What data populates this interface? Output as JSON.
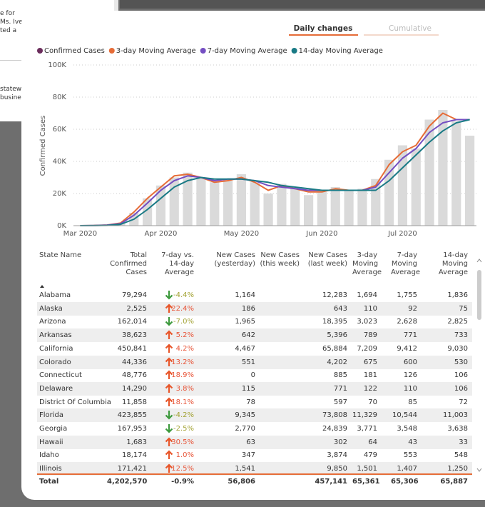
{
  "background_texts": [
    "e for",
    "Ms. Ive",
    "ted a",
    "statew",
    "busine"
  ],
  "tabs": [
    "Daily changes",
    "Cumulative"
  ],
  "chart_data": {
    "type": "line",
    "ylabel": "Confirmed Cases",
    "categories": [
      "Mar 2020",
      null,
      null,
      null,
      null,
      null,
      "Apr 2020",
      null,
      null,
      null,
      null,
      null,
      "May 2020",
      null,
      null,
      null,
      null,
      null,
      "Jun 2020",
      null,
      null,
      null,
      null,
      null,
      "Jul 2020",
      null,
      null,
      null,
      null,
      null
    ],
    "ylim": [
      0,
      100000
    ],
    "yticks": [
      {
        "value": 0,
        "label": "0K"
      },
      {
        "value": 20000,
        "label": "20K"
      },
      {
        "value": 40000,
        "label": "40K"
      },
      {
        "value": 60000,
        "label": "60K"
      },
      {
        "value": 80000,
        "label": "80K"
      },
      {
        "value": 100000,
        "label": "100K"
      }
    ],
    "grid": true,
    "legend": "top-left",
    "bar_color": "#dadada",
    "series": [
      {
        "name": "Confirmed Cases",
        "color": "#6b2d5c",
        "kind": "bar",
        "values": [
          0,
          100,
          400,
          1500,
          8000,
          17000,
          25000,
          30000,
          33000,
          30000,
          27000,
          29000,
          32000,
          27000,
          20000,
          26000,
          24000,
          19000,
          21000,
          24000,
          22000,
          23000,
          29000,
          41000,
          50000,
          48000,
          66000,
          72000,
          65000,
          56000
        ]
      },
      {
        "name": "3-day Moving Average",
        "color": "#e66c37",
        "kind": "line",
        "values": [
          0,
          100,
          400,
          1600,
          8500,
          17000,
          24000,
          31000,
          32000,
          30000,
          27000,
          28000,
          30000,
          27000,
          22000,
          25000,
          23000,
          21000,
          21000,
          23000,
          22000,
          22000,
          25000,
          38000,
          46000,
          50000,
          62000,
          70000,
          66000,
          66000
        ]
      },
      {
        "name": "7-day Moving Average",
        "color": "#744ec2",
        "kind": "line",
        "values": [
          0,
          50,
          300,
          1200,
          6500,
          14000,
          22000,
          28000,
          31000,
          30000,
          28000,
          29000,
          29000,
          28000,
          25000,
          24000,
          23000,
          22000,
          22000,
          22000,
          22000,
          22000,
          24000,
          33000,
          42000,
          48000,
          58000,
          64000,
          66000,
          66000
        ]
      },
      {
        "name": "14-day Moving Average",
        "color": "#197a85",
        "kind": "line",
        "values": [
          0,
          30,
          200,
          800,
          4000,
          10000,
          17000,
          24000,
          28000,
          30000,
          29000,
          29000,
          29000,
          28000,
          27000,
          25000,
          24000,
          23000,
          22000,
          22000,
          22000,
          22000,
          22000,
          28000,
          36000,
          44000,
          52000,
          59000,
          64000,
          66000
        ]
      }
    ]
  },
  "table": {
    "columns": [
      "State Name",
      "Total Confirmed Cases",
      "7-day vs. 14-day Average",
      "New Cases (yesterday)",
      "New Cases (this week)",
      "New Cases (last week)",
      "3-day Moving Average",
      "7-day Moving Average",
      "14-day Moving Average"
    ],
    "rows": [
      [
        "Alabama",
        "79,294",
        "-4.4%",
        "1,164",
        "",
        "12,283",
        "1,694",
        "1,755",
        "1,836"
      ],
      [
        "Alaska",
        "2,525",
        "22.4%",
        "186",
        "",
        "643",
        "110",
        "92",
        "75"
      ],
      [
        "Arizona",
        "162,014",
        "-7.0%",
        "1,965",
        "",
        "18,395",
        "3,023",
        "2,628",
        "2,825"
      ],
      [
        "Arkansas",
        "38,623",
        "5.2%",
        "642",
        "",
        "5,396",
        "789",
        "771",
        "733"
      ],
      [
        "California",
        "450,841",
        "4.2%",
        "4,467",
        "",
        "65,884",
        "7,209",
        "9,412",
        "9,030"
      ],
      [
        "Colorado",
        "44,336",
        "13.2%",
        "551",
        "",
        "4,202",
        "675",
        "600",
        "530"
      ],
      [
        "Connecticut",
        "48,776",
        "18.9%",
        "0",
        "",
        "885",
        "181",
        "126",
        "106"
      ],
      [
        "Delaware",
        "14,290",
        "3.8%",
        "115",
        "",
        "771",
        "122",
        "110",
        "106"
      ],
      [
        "District Of Columbia",
        "11,858",
        "18.1%",
        "78",
        "",
        "597",
        "70",
        "85",
        "72"
      ],
      [
        "Florida",
        "423,855",
        "-4.2%",
        "9,345",
        "",
        "73,808",
        "11,329",
        "10,544",
        "11,003"
      ],
      [
        "Georgia",
        "167,953",
        "-2.5%",
        "2,770",
        "",
        "24,839",
        "3,771",
        "3,548",
        "3,638"
      ],
      [
        "Hawaii",
        "1,683",
        "30.5%",
        "63",
        "",
        "302",
        "64",
        "43",
        "33"
      ],
      [
        "Idaho",
        "18,174",
        "1.0%",
        "347",
        "",
        "3,874",
        "479",
        "553",
        "548"
      ],
      [
        "Illinois",
        "171,421",
        "12.5%",
        "1,541",
        "",
        "9,850",
        "1,501",
        "1,407",
        "1,250"
      ]
    ],
    "total": [
      "Total",
      "4,202,570",
      "-0.9%",
      "56,806",
      "",
      "457,141",
      "65,361",
      "65,306",
      "65,887"
    ]
  }
}
